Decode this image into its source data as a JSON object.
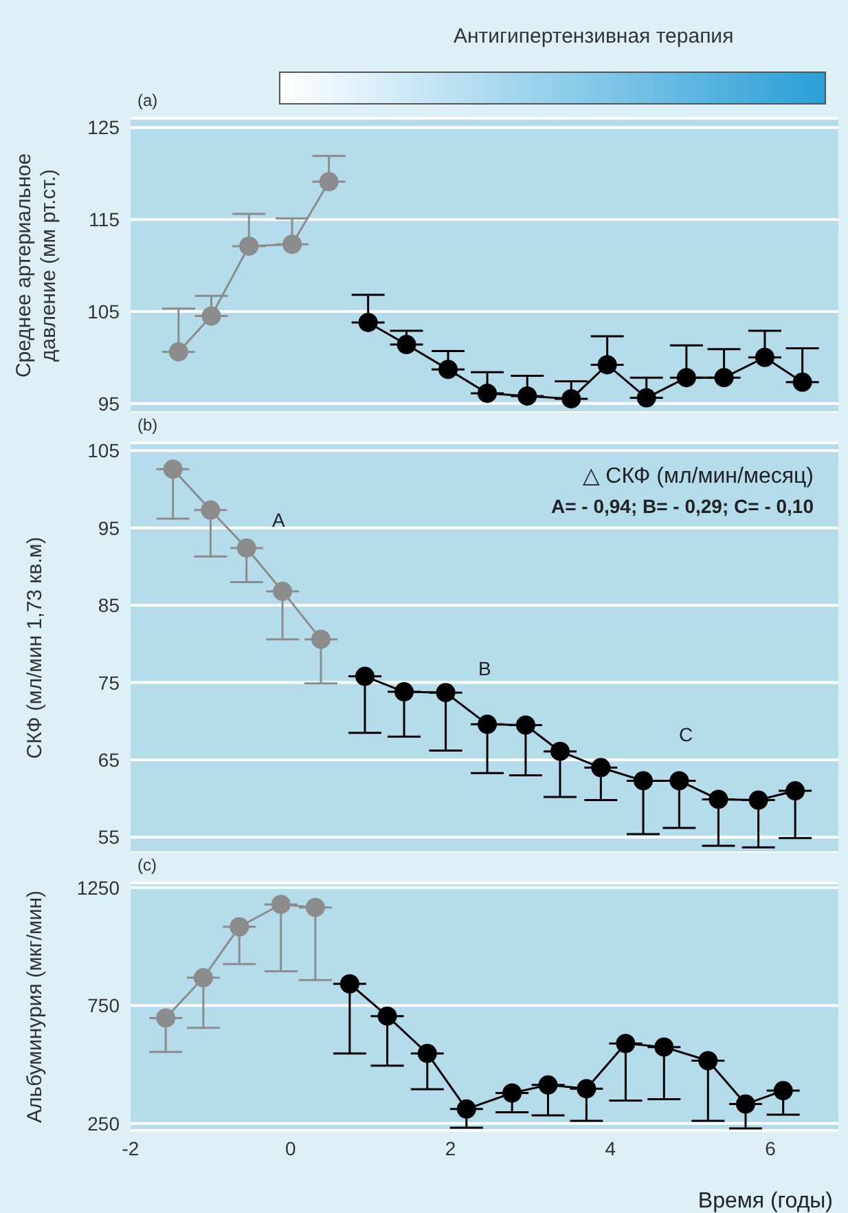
{
  "chart_data": [
    {
      "type": "line",
      "title": "Антигипертензивная терапия",
      "subtitle": "(a)",
      "ylabel": "Среднее артериальное давление (мм рт.ст.)",
      "xlim": [
        -2,
        6.85
      ],
      "ylim": [
        94,
        126
      ],
      "yticks": [
        95,
        105,
        115,
        125
      ],
      "tick_labels": "y",
      "grid": "y",
      "marker": "circle",
      "line_style": "solid",
      "series": [
        {
          "color": "#8c8c8c",
          "x": [
            -1.4,
            -0.99,
            -0.52,
            0.02,
            0.48
          ],
          "values": [
            100.6,
            104.5,
            112.1,
            112.3,
            119.1
          ],
          "errors": [
            [
              100.6,
              105.3
            ],
            [
              104.5,
              106.7
            ],
            [
              112.1,
              115.6
            ],
            [
              112.3,
              115.1
            ],
            [
              119.1,
              121.9
            ]
          ]
        },
        {
          "color": "#000000",
          "x": [
            0.97,
            1.45,
            1.97,
            2.46,
            2.96,
            3.51,
            3.96,
            4.45,
            4.95,
            5.42,
            5.93,
            6.4
          ],
          "values": [
            103.8,
            101.4,
            98.7,
            96.1,
            95.8,
            95.5,
            99.2,
            95.6,
            97.8,
            97.8,
            100,
            97.3
          ],
          "errors": [
            [
              103.8,
              106.8
            ],
            [
              101.4,
              102.9
            ],
            [
              98.7,
              100.7
            ],
            [
              96.1,
              98.4
            ],
            [
              95.8,
              98
            ],
            [
              95.5,
              97.4
            ],
            [
              99.2,
              102.3
            ],
            [
              95.6,
              97.8
            ],
            [
              97.8,
              101.3
            ],
            [
              97.8,
              100.9
            ],
            [
              100,
              102.9
            ],
            [
              97.3,
              101
            ]
          ]
        }
      ]
    },
    {
      "type": "line",
      "subtitle": "(b)",
      "ylabel": "СКФ (мл/мин 1,73 кв.м)",
      "xlim": [
        -2,
        6.85
      ],
      "ylim": [
        53,
        106
      ],
      "yticks": [
        55,
        65,
        75,
        85,
        95,
        105
      ],
      "tick_labels": "y",
      "grid": "y",
      "marker": "circle",
      "line_style": "solid",
      "annotations": [
        "△ СКФ (мл/мин/месяц)",
        "A= - 0,94; B= - 0,29; C= - 0,10",
        "A",
        "B",
        "C"
      ],
      "series": [
        {
          "color": "#8c8c8c",
          "x": [
            -1.47,
            -1,
            -0.55,
            -0.1,
            0.38
          ],
          "values": [
            102.6,
            97.3,
            92.4,
            86.8,
            80.6
          ],
          "errors": [
            [
              96.2,
              102.6
            ],
            [
              91.3,
              97.3
            ],
            [
              88,
              92.4
            ],
            [
              80.6,
              86.8
            ],
            [
              74.9,
              80.6
            ]
          ]
        },
        {
          "color": "#000000",
          "x": [
            0.93,
            1.42,
            1.94,
            2.46,
            2.94,
            3.37,
            3.88,
            4.41,
            4.86,
            5.35,
            5.85,
            6.31
          ],
          "values": [
            75.8,
            73.8,
            73.7,
            69.6,
            69.5,
            66.1,
            64,
            62.3,
            62.3,
            59.9,
            59.8,
            61
          ],
          "errors": [
            [
              68.5,
              75.8
            ],
            [
              68,
              73.8
            ],
            [
              66.2,
              73.7
            ],
            [
              63.3,
              69.6
            ],
            [
              63,
              69.5
            ],
            [
              60.2,
              66.1
            ],
            [
              59.8,
              64
            ],
            [
              55.4,
              62.3
            ],
            [
              56.2,
              62.3
            ],
            [
              53.9,
              59.9
            ],
            [
              53.7,
              59.8
            ],
            [
              54.9,
              61
            ]
          ]
        }
      ]
    },
    {
      "type": "line",
      "subtitle": "(c)",
      "xlabel": "Время (годы)",
      "ylabel": "Альбуминурия (мкг/мин)",
      "xlim": [
        -2,
        6.85
      ],
      "xticks": [
        -2,
        0,
        2,
        4,
        6
      ],
      "ylim": [
        220,
        1270
      ],
      "yticks": [
        250,
        750,
        1250
      ],
      "grid": "y",
      "marker": "circle",
      "line_style": "solid",
      "series": [
        {
          "color": "#8c8c8c",
          "x": [
            -1.56,
            -1.09,
            -0.64,
            -0.12,
            0.31
          ],
          "values": [
            697,
            868,
            1084,
            1179,
            1166
          ],
          "errors": [
            [
              553,
              697
            ],
            [
              655,
              868
            ],
            [
              926,
              1084
            ],
            [
              895,
              1179
            ],
            [
              858,
              1166
            ]
          ]
        },
        {
          "color": "#000000",
          "x": [
            0.74,
            1.21,
            1.71,
            2.2,
            2.77,
            3.22,
            3.7,
            4.19,
            4.67,
            5.22,
            5.69,
            6.16
          ],
          "values": [
            842,
            705,
            547,
            311,
            379,
            413,
            397,
            589,
            574,
            516,
            332,
            389
          ],
          "errors": [
            [
              547,
              842
            ],
            [
              495,
              705
            ],
            [
              395,
              547
            ],
            [
              232,
              311
            ],
            [
              297,
              379
            ],
            [
              284,
              413
            ],
            [
              261,
              397
            ],
            [
              347,
              589
            ],
            [
              353,
              574
            ],
            [
              261,
              516
            ],
            [
              229,
              332
            ],
            [
              287,
              389
            ]
          ]
        }
      ]
    }
  ]
}
